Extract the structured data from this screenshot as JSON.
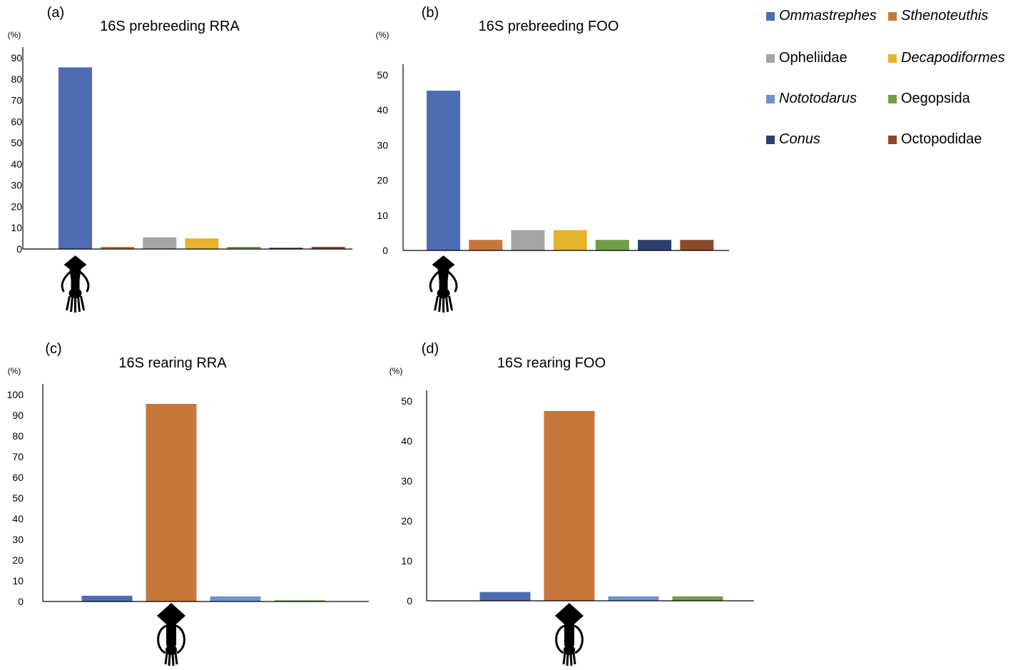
{
  "legend": [
    {
      "name": "Ommastrephes",
      "italic": true,
      "color": "#4e6cb3"
    },
    {
      "name": "Sthenoteuthis",
      "italic": true,
      "color": "#c8773a"
    },
    {
      "name": "Opheliidae",
      "italic": false,
      "color": "#a5a5a5"
    },
    {
      "name": "Decapodiformes",
      "italic": true,
      "color": "#e4b42c"
    },
    {
      "name": "Nototodarus",
      "italic": true,
      "color": "#6f95cf"
    },
    {
      "name": "Oegopsida",
      "italic": false,
      "color": "#6f9e48"
    },
    {
      "name": "Conus",
      "italic": true,
      "color": "#2c3f6c"
    },
    {
      "name": "Octopodidae",
      "italic": false,
      "color": "#8a4a2a"
    }
  ],
  "silhouette_icons": [
    "squid-flat-fins-icon",
    "squid-diamond-fins-icon"
  ],
  "chart_data": [
    {
      "panel": "(a)",
      "type": "bar",
      "title": "16S prebreeding RRA",
      "ylabel": "(%)",
      "ylim": [
        0,
        90
      ],
      "yticks": [
        0,
        10,
        20,
        30,
        40,
        50,
        60,
        70,
        80,
        90
      ],
      "categories": [
        "Ommastrephes",
        "Sthenoteuthis",
        "Opheliidae",
        "Decapodiformes",
        "Oegopsida",
        "Conus",
        "Octopodidae"
      ],
      "values": [
        85.5,
        1.0,
        5.5,
        5.0,
        1.0,
        0.6,
        1.0
      ],
      "colors": [
        "#4e6cb3",
        "#c8773a",
        "#a5a5a5",
        "#e4b42c",
        "#6f9e48",
        "#2c3f6c",
        "#8a4a2a"
      ],
      "icon": "squid-flat-fins-icon",
      "icon_under_category": 0
    },
    {
      "panel": "(b)",
      "type": "bar",
      "title": "16S prebreeding FOO",
      "ylabel": "(%)",
      "ylim": [
        0,
        50
      ],
      "yticks": [
        0,
        10,
        20,
        30,
        40,
        50
      ],
      "categories": [
        "Ommastrephes",
        "Sthenoteuthis",
        "Opheliidae",
        "Decapodiformes",
        "Oegopsida",
        "Conus",
        "Octopodidae"
      ],
      "values": [
        45.5,
        3.0,
        5.8,
        5.8,
        3.0,
        3.0,
        3.0
      ],
      "colors": [
        "#4e6cb3",
        "#c8773a",
        "#a5a5a5",
        "#e4b42c",
        "#6f9e48",
        "#2c3f6c",
        "#8a4a2a"
      ],
      "icon": "squid-flat-fins-icon",
      "icon_under_category": 0
    },
    {
      "panel": "(c)",
      "type": "bar",
      "title": "16S rearing RRA",
      "ylabel": "(%)",
      "ylim": [
        0,
        100
      ],
      "yticks": [
        0,
        10,
        20,
        30,
        40,
        50,
        60,
        70,
        80,
        90,
        100
      ],
      "categories": [
        "Ommastrephes",
        "Sthenoteuthis",
        "Nototodarus",
        "Oegopsida"
      ],
      "values": [
        2.8,
        95.5,
        2.5,
        0.6
      ],
      "colors": [
        "#4e6cb3",
        "#c8773a",
        "#6f95cf",
        "#6f9e48"
      ],
      "icon": "squid-diamond-fins-icon",
      "icon_under_category": 1
    },
    {
      "panel": "(d)",
      "type": "bar",
      "title": "16S rearing FOO",
      "ylabel": "(%)",
      "ylim": [
        0,
        50
      ],
      "yticks": [
        0,
        10,
        20,
        30,
        40,
        50
      ],
      "categories": [
        "Ommastrephes",
        "Sthenoteuthis",
        "Nototodarus",
        "Oegopsida"
      ],
      "values": [
        2.2,
        47.5,
        1.1,
        1.1
      ],
      "colors": [
        "#4e6cb3",
        "#c8773a",
        "#6f95cf",
        "#6f9e48"
      ],
      "icon": "squid-diamond-fins-icon",
      "icon_under_category": 1
    }
  ]
}
